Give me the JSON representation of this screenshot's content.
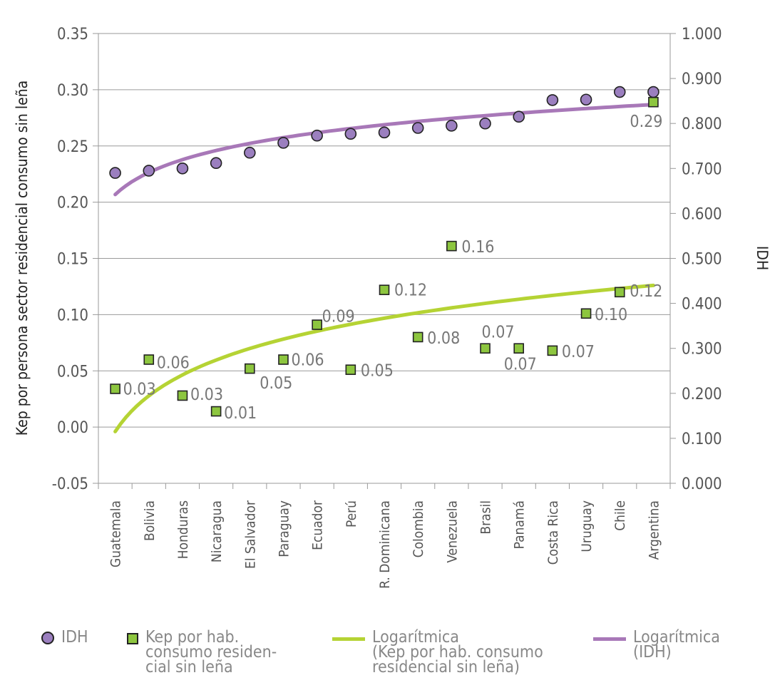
{
  "chart_data": {
    "type": "scatter",
    "categories": [
      "Guatemala",
      "Bolivia",
      "Honduras",
      "Nicaragua",
      "El Salvador",
      "Paraguay",
      "Ecuador",
      "Perú",
      "R. Dominicana",
      "Colombia",
      "Venezuela",
      "Brasil",
      "Panamá",
      "Costa Rica",
      "Uruguay",
      "Chile",
      "Argentina"
    ],
    "ylabel": "Kep por persona sector residencial consumo sin leña",
    "y2label": "IDH",
    "ylim": [
      -0.05,
      0.35
    ],
    "y2lim": [
      0.0,
      1.0
    ],
    "yticks": [
      "-0.05",
      "0.00",
      "0.05",
      "0.10",
      "0.15",
      "0.20",
      "0.25",
      "0.30",
      "0.35"
    ],
    "y2ticks": [
      "0.000",
      "0.100",
      "0.200",
      "0.300",
      "0.400",
      "0.500",
      "0.600",
      "0.700",
      "0.800",
      "0.900",
      "1.000"
    ],
    "series": [
      {
        "name": "IDH",
        "axis": "right",
        "marker": "circle",
        "color": "#9b7fbf",
        "values": [
          0.69,
          0.695,
          0.7,
          0.712,
          0.735,
          0.757,
          0.773,
          0.777,
          0.78,
          0.79,
          0.795,
          0.8,
          0.815,
          0.852,
          0.853,
          0.87,
          0.87
        ]
      },
      {
        "name": "Kep por hab. consumo residencial sin leña",
        "axis": "left",
        "marker": "square",
        "color": "#8dc63f",
        "values": [
          0.034,
          0.06,
          0.028,
          0.014,
          0.052,
          0.06,
          0.091,
          0.051,
          0.122,
          0.08,
          0.161,
          0.07,
          0.07,
          0.068,
          0.101,
          0.12,
          0.289
        ],
        "labels": [
          "0.03",
          "0.06",
          "0.03",
          "0.01",
          "0.05",
          "0.06",
          "0.09",
          "0.05",
          "0.12",
          "0.08",
          "0.16",
          "0.07",
          "0.07",
          "0.07",
          "0.10",
          "0.12",
          "0.29"
        ]
      }
    ],
    "trendlines": [
      {
        "name": "Logarítmica (Kep por hab. consumo residencial sin leña)",
        "axis": "left",
        "color": "#b5d334",
        "start": -0.004,
        "end": 0.126
      },
      {
        "name": "Logarítmica (IDH)",
        "axis": "right",
        "color": "#a878b8",
        "start": 0.642,
        "end": 0.842
      }
    ],
    "grid": true,
    "legend": "bottom"
  },
  "legend": {
    "idh": "IDH",
    "kep": "Kep por hab.\nconsumo residen-\ncial sin leña",
    "log_kep": "Logarítmica\n(Kep por hab. consumo\nresidencial sin leña)",
    "log_idh": "Logarítmica\n(IDH)"
  }
}
